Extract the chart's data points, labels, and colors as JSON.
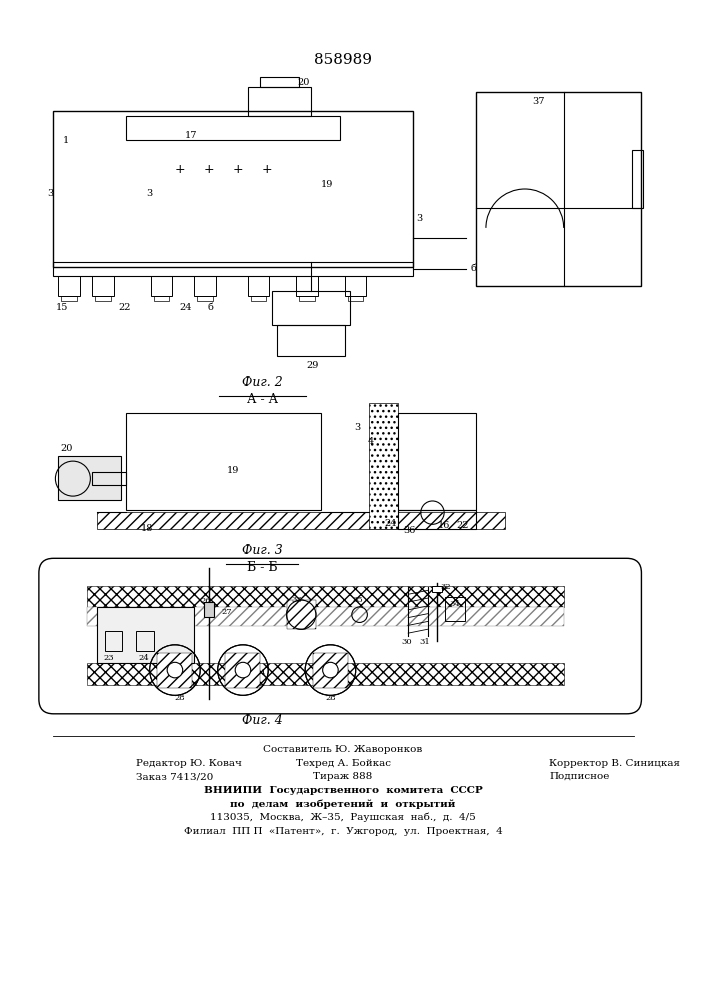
{
  "title_number": "858989",
  "background_color": "#ffffff",
  "line_color": "#000000",
  "fig_width": 7.07,
  "fig_height": 10.0,
  "fig2_caption": "Фиг. 2",
  "fig3_caption": "Фиг. 3",
  "fig4_caption": "Фиг. 4",
  "section_aa": "А - А",
  "section_bb": "Б - Б",
  "footer_line1": "Составитель Ю. Жаворонков",
  "footer_line2_left": "Редактор Ю. Ковач",
  "footer_line2_mid": "Техред А. Бойкас",
  "footer_line2_right": "Корректор В. Синицкая",
  "footer_line3_left": "Заказ 7413/20",
  "footer_line3_mid": "Тираж 888",
  "footer_line3_right": "Подписное",
  "footer_line4": "ВНИИПИ  Государственного  комитета  СССР",
  "footer_line5": "по  делам  изобретений  и  открытий",
  "footer_line6": "113035,  Москва,  Ж–35,  Раушская  наб.,  д.  4/5",
  "footer_line7": "Филиал  ПП П  «Патент»,  г.  Ужгород,  ул.  Проектная,  4"
}
